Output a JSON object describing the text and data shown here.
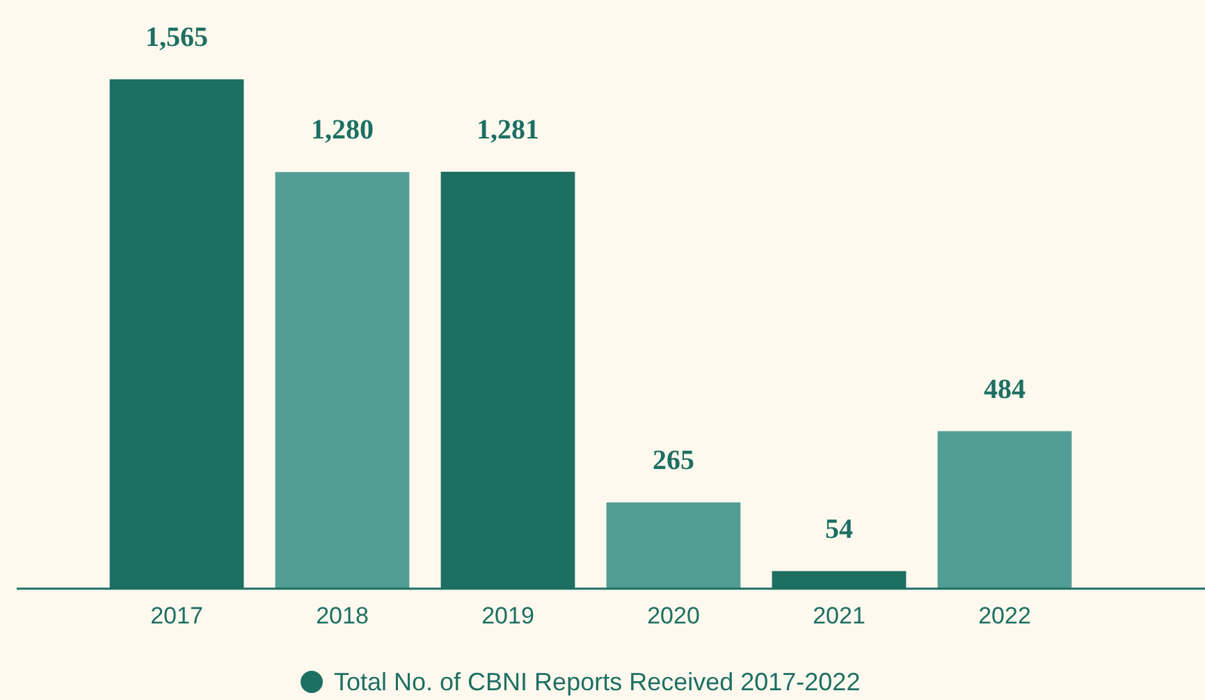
{
  "chart_data": {
    "type": "bar",
    "categories": [
      "2017",
      "2018",
      "2019",
      "2020",
      "2021",
      "2022"
    ],
    "series": [
      {
        "name": "Total No. of CBNI Reports Received 2017-2022",
        "color": "#1d6f62",
        "colors": [
          "#1d6f62",
          "#529e94",
          "#1d6f62",
          "#529e94",
          "#1d6f62",
          "#529e94"
        ],
        "values": [
          1565,
          1280,
          1281,
          265,
          54,
          484
        ],
        "value_labels": [
          "1,565",
          "1,280",
          "1,281",
          "265",
          "54",
          "484"
        ]
      }
    ],
    "legend": "bottom",
    "grid": false
  }
}
